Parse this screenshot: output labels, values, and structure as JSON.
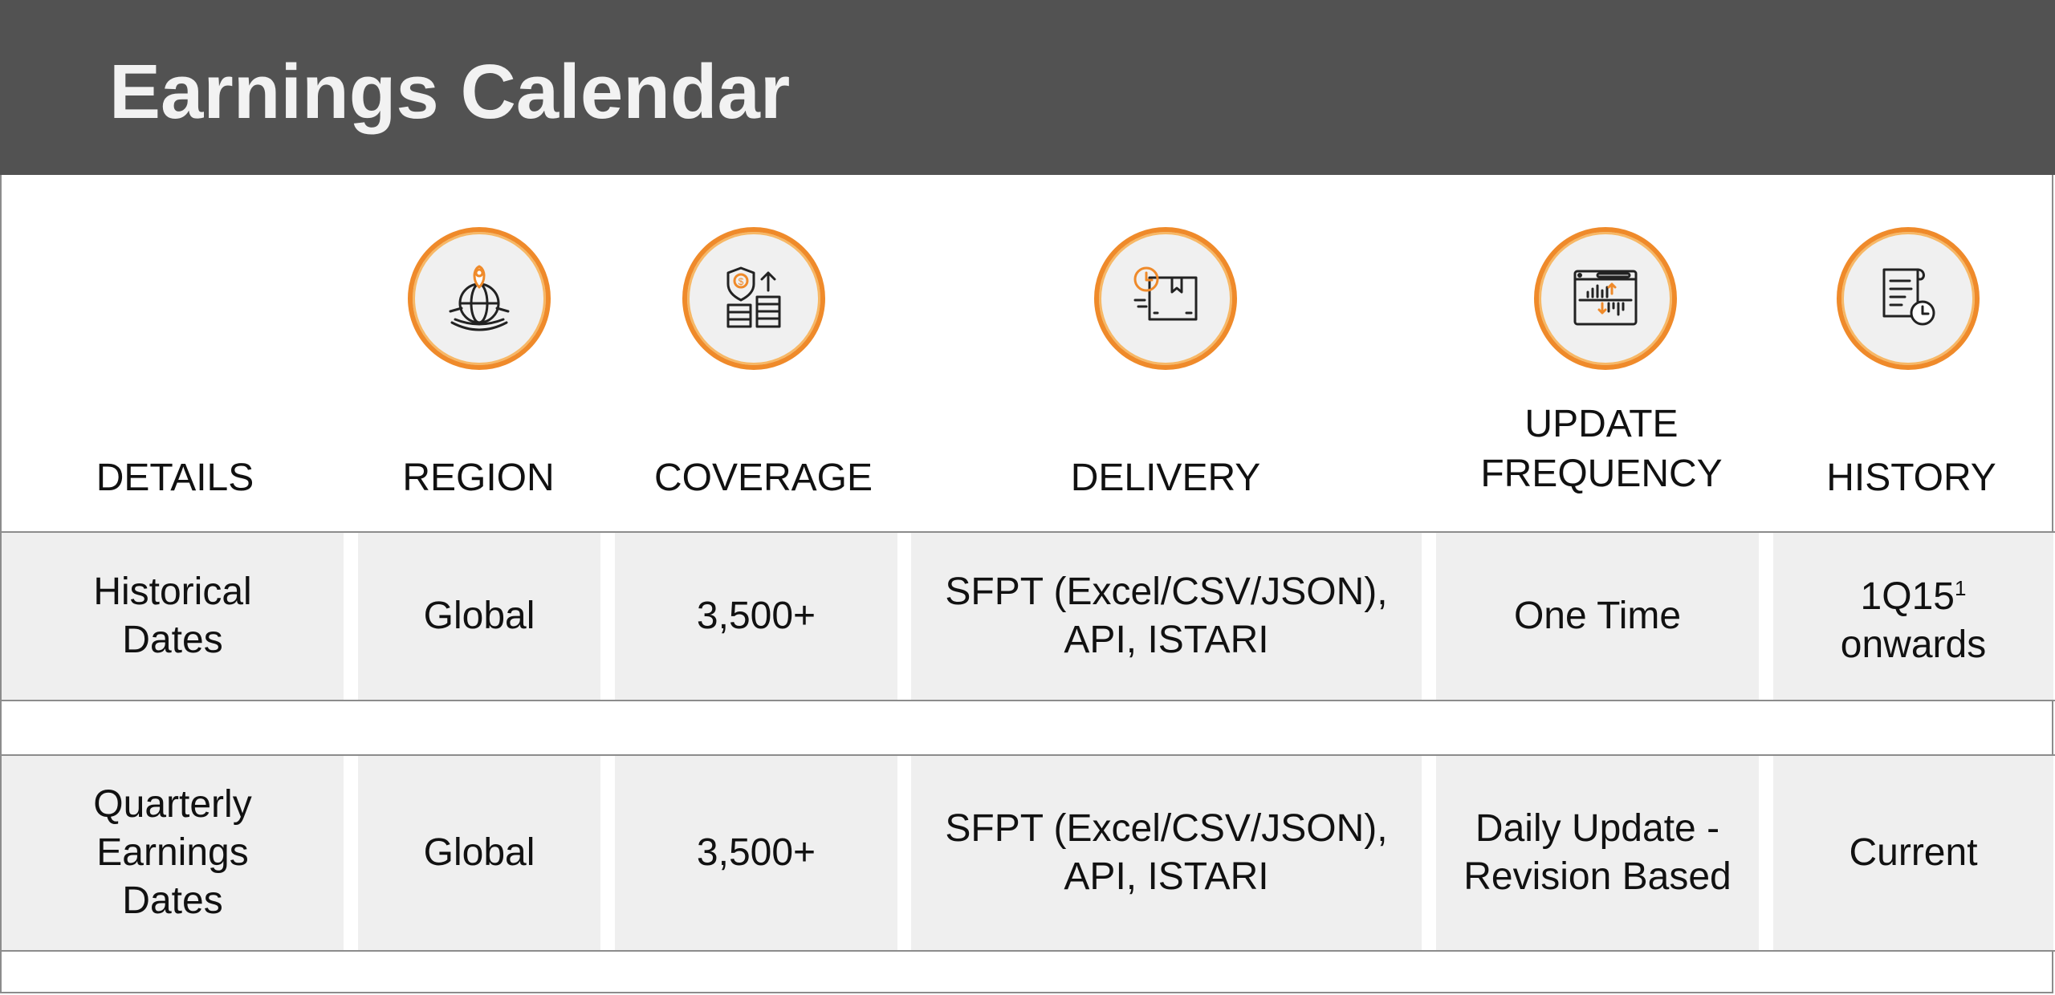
{
  "title": "Earnings Calendar",
  "headers": [
    {
      "label": "DETAILS",
      "icon": null
    },
    {
      "label": "REGION",
      "icon": "globe-location-icon"
    },
    {
      "label": "COVERAGE",
      "icon": "shield-dollar-stack-icon"
    },
    {
      "label": "DELIVERY",
      "icon": "package-clock-icon"
    },
    {
      "label": "UPDATE FREQUENCY",
      "line1": "UPDATE",
      "line2": "FREQUENCY",
      "icon": "dashboard-chart-icon"
    },
    {
      "label": "HISTORY",
      "icon": "document-clock-icon"
    }
  ],
  "rows": [
    {
      "details": "Historical Dates",
      "region": "Global",
      "coverage": "3,500+",
      "delivery_1": "SFPT (Excel/CSV/JSON),",
      "delivery_2": "API, ISTARI",
      "update_frequency": "One Time",
      "history_1": "1Q15",
      "history_sup": "1",
      "history_2": "onwards"
    },
    {
      "details_1": "Quarterly",
      "details_2": "Earnings",
      "details_3": "Dates",
      "region": "Global",
      "coverage": "3,500+",
      "delivery_1": "SFPT (Excel/CSV/JSON),",
      "delivery_2": "API, ISTARI",
      "update_frequency_1": "Daily Update -",
      "update_frequency_2": "Revision Based",
      "history": "Current"
    }
  ],
  "row1_details_1": "Historical",
  "row1_details_2": "Dates",
  "colors": {
    "header_bg": "#525252",
    "accent": "#ef8a2a",
    "cell_bg": "#efefef"
  }
}
